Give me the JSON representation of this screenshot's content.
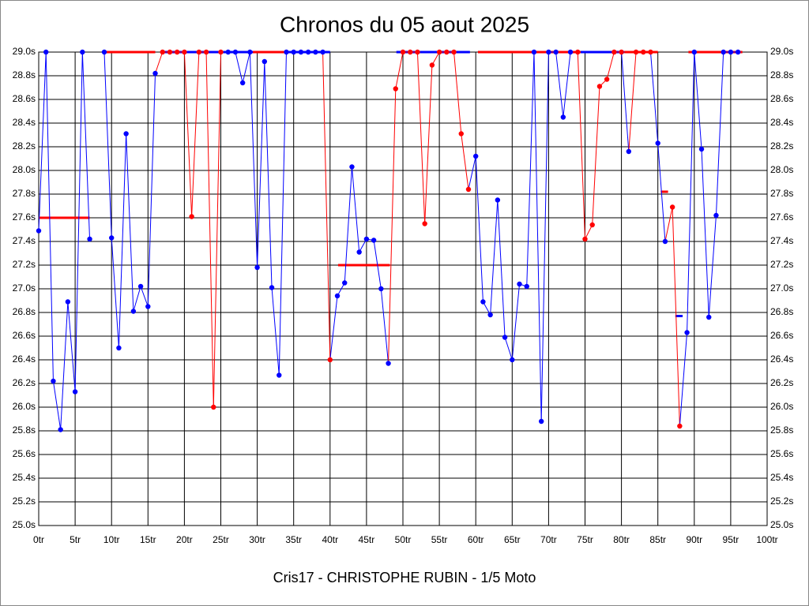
{
  "chart_data": {
    "type": "line",
    "title": "Chronos du 05 aout 2025",
    "x_label": "Cris17 - CHRISTOPHE RUBIN - 1/5 Moto",
    "xlim": [
      0,
      100
    ],
    "xticks": [
      {
        "value": 0,
        "label": "0tr"
      },
      {
        "value": 5,
        "label": "5tr"
      },
      {
        "value": 10,
        "label": "10tr"
      },
      {
        "value": 15,
        "label": "15tr"
      },
      {
        "value": 20,
        "label": "20tr"
      },
      {
        "value": 25,
        "label": "25tr"
      },
      {
        "value": 30,
        "label": "30tr"
      },
      {
        "value": 35,
        "label": "35tr"
      },
      {
        "value": 40,
        "label": "40tr"
      },
      {
        "value": 45,
        "label": "45tr"
      },
      {
        "value": 50,
        "label": "50tr"
      },
      {
        "value": 55,
        "label": "55tr"
      },
      {
        "value": 60,
        "label": "60tr"
      },
      {
        "value": 65,
        "label": "65tr"
      },
      {
        "value": 70,
        "label": "70tr"
      },
      {
        "value": 75,
        "label": "75tr"
      },
      {
        "value": 80,
        "label": "80tr"
      },
      {
        "value": 85,
        "label": "85tr"
      },
      {
        "value": 90,
        "label": "90tr"
      },
      {
        "value": 95,
        "label": "95tr"
      },
      {
        "value": 100,
        "label": "100tr"
      }
    ],
    "ylim": [
      25,
      29
    ],
    "yticks": [
      {
        "value": 25.0,
        "label": "25.0s"
      },
      {
        "value": 25.2,
        "label": "25.2s"
      },
      {
        "value": 25.4,
        "label": "25.4s"
      },
      {
        "value": 25.6,
        "label": "25.6s"
      },
      {
        "value": 25.8,
        "label": "25.8s"
      },
      {
        "value": 26.0,
        "label": "26.0s"
      },
      {
        "value": 26.2,
        "label": "26.2s"
      },
      {
        "value": 26.4,
        "label": "26.4s"
      },
      {
        "value": 26.6,
        "label": "26.6s"
      },
      {
        "value": 26.8,
        "label": "26.8s"
      },
      {
        "value": 27.0,
        "label": "27.0s"
      },
      {
        "value": 27.2,
        "label": "27.2s"
      },
      {
        "value": 27.4,
        "label": "27.4s"
      },
      {
        "value": 27.6,
        "label": "27.6s"
      },
      {
        "value": 27.8,
        "label": "27.8s"
      },
      {
        "value": 28.0,
        "label": "28.0s"
      },
      {
        "value": 28.2,
        "label": "28.2s"
      },
      {
        "value": 28.4,
        "label": "28.4s"
      },
      {
        "value": 28.6,
        "label": "28.6s"
      },
      {
        "value": 28.8,
        "label": "28.8s"
      },
      {
        "value": 29.0,
        "label": "29.0s"
      }
    ],
    "grid": true,
    "values": [
      27.49,
      29.0,
      26.22,
      25.81,
      26.89,
      26.13,
      29.0,
      27.42,
      null,
      29.0,
      27.43,
      26.5,
      28.31,
      26.81,
      27.02,
      26.85,
      28.82,
      29.0,
      29.0,
      29.0,
      29.0,
      27.61,
      29.0,
      29.0,
      26.0,
      29.0,
      29.0,
      29.0,
      28.74,
      29.0,
      27.18,
      28.92,
      27.01,
      26.27,
      29.0,
      29.0,
      29.0,
      29.0,
      29.0,
      29.0,
      26.4,
      26.94,
      27.05,
      28.03,
      27.31,
      27.42,
      27.41,
      27.0,
      26.37,
      28.69,
      29.0,
      29.0,
      29.0,
      27.55,
      28.89,
      29.0,
      29.0,
      29.0,
      28.31,
      27.84,
      28.12,
      26.89,
      26.78,
      27.75,
      26.59,
      26.4,
      27.04,
      27.02,
      29.0,
      25.88,
      29.0,
      29.0,
      28.45,
      29.0,
      29.0,
      27.42,
      27.54,
      28.71,
      28.77,
      29.0,
      29.0,
      28.16,
      29.0,
      29.0,
      29.0,
      28.23,
      27.4,
      27.69,
      25.84,
      26.63,
      29.0,
      28.18,
      26.76,
      27.62,
      29.0,
      29.0,
      29.0
    ],
    "colors": [
      "#0000ff",
      "#0000ff",
      "#0000ff",
      "#0000ff",
      "#0000ff",
      "#0000ff",
      "#0000ff",
      "#0000ff",
      "#0000ff",
      "#0000ff",
      "#0000ff",
      "#0000ff",
      "#0000ff",
      "#0000ff",
      "#0000ff",
      "#0000ff",
      "#0000ff",
      "#ff0000",
      "#ff0000",
      "#ff0000",
      "#ff0000",
      "#ff0000",
      "#ff0000",
      "#ff0000",
      "#ff0000",
      "#ff0000",
      "#0000ff",
      "#0000ff",
      "#0000ff",
      "#0000ff",
      "#0000ff",
      "#0000ff",
      "#0000ff",
      "#0000ff",
      "#0000ff",
      "#0000ff",
      "#0000ff",
      "#0000ff",
      "#0000ff",
      "#0000ff",
      "#ff0000",
      "#0000ff",
      "#0000ff",
      "#0000ff",
      "#0000ff",
      "#0000ff",
      "#0000ff",
      "#0000ff",
      "#0000ff",
      "#ff0000",
      "#ff0000",
      "#ff0000",
      "#ff0000",
      "#ff0000",
      "#ff0000",
      "#ff0000",
      "#ff0000",
      "#ff0000",
      "#ff0000",
      "#ff0000",
      "#0000ff",
      "#0000ff",
      "#0000ff",
      "#0000ff",
      "#0000ff",
      "#0000ff",
      "#0000ff",
      "#0000ff",
      "#0000ff",
      "#0000ff",
      "#0000ff",
      "#0000ff",
      "#0000ff",
      "#0000ff",
      "#ff0000",
      "#ff0000",
      "#ff0000",
      "#ff0000",
      "#ff0000",
      "#ff0000",
      "#ff0000",
      "#0000ff",
      "#ff0000",
      "#ff0000",
      "#ff0000",
      "#0000ff",
      "#0000ff",
      "#ff0000",
      "#ff0000",
      "#0000ff",
      "#0000ff",
      "#0000ff",
      "#0000ff",
      "#0000ff",
      "#0000ff",
      "#0000ff",
      "#0000ff"
    ],
    "segments": [
      {
        "x0": 0,
        "x1": 7,
        "y": 27.6,
        "color": "#ff0000"
      },
      {
        "x0": 9,
        "x1": 16,
        "y": 29.0,
        "color": "#ff0000"
      },
      {
        "x0": 17,
        "x1": 30,
        "y": 29.0,
        "color": "#0000ff"
      },
      {
        "x0": 29.4,
        "x1": 34.2,
        "y": 29.0,
        "color": "#ff0000"
      },
      {
        "x0": 34.2,
        "x1": 40,
        "y": 29.0,
        "color": "#0000ff"
      },
      {
        "x0": 41.1,
        "x1": 48.2,
        "y": 27.2,
        "color": "#ff0000"
      },
      {
        "x0": 49.1,
        "x1": 59.2,
        "y": 29.0,
        "color": "#0000ff"
      },
      {
        "x0": 60.3,
        "x1": 74.4,
        "y": 29.0,
        "color": "#ff0000"
      },
      {
        "x0": 74.4,
        "x1": 80.4,
        "y": 29.0,
        "color": "#0000ff"
      },
      {
        "x0": 80.4,
        "x1": 85,
        "y": 29.0,
        "color": "#ff0000"
      },
      {
        "x0": 85.4,
        "x1": 86.4,
        "y": 27.82,
        "color": "#ff0000"
      },
      {
        "x0": 87.4,
        "x1": 88.4,
        "y": 26.77,
        "color": "#0000ff"
      },
      {
        "x0": 89.2,
        "x1": 96.6,
        "y": 29.0,
        "color": "#ff0000"
      }
    ]
  }
}
